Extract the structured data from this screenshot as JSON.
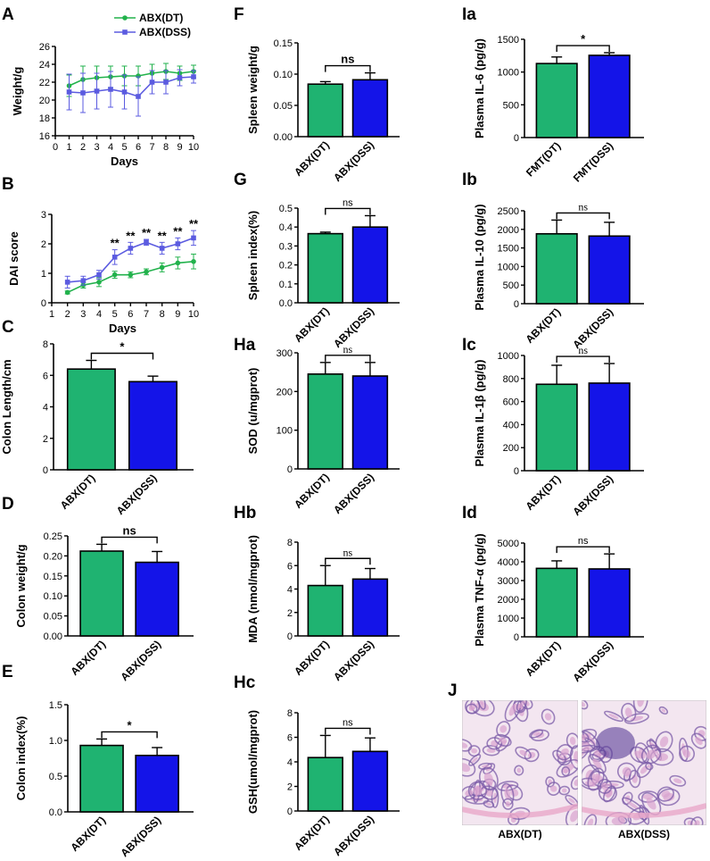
{
  "colors": {
    "green": "#1fb371",
    "blue": "#1414e8",
    "line_green": "#22b24c",
    "line_blue": "#5b5be0",
    "tissue_pink": "#d9a3cf",
    "tissue_purple": "#7c5ca8"
  },
  "chart_data": [
    {
      "id": "A",
      "label": "A",
      "type": "line",
      "ylabel": "Weight/g",
      "xlabel": "Days",
      "ylim": [
        16,
        26
      ],
      "yticks": [
        16,
        18,
        20,
        22,
        24,
        26
      ],
      "xlim": [
        0,
        10
      ],
      "xticks": [
        0,
        1,
        2,
        3,
        4,
        5,
        6,
        7,
        8,
        9,
        10
      ],
      "legend": [
        "ABX(DT)",
        "ABX(DSS)"
      ],
      "series": [
        {
          "name": "ABX(DT)",
          "x": [
            1,
            2,
            3,
            4,
            5,
            6,
            7,
            8,
            9,
            10
          ],
          "values": [
            21.6,
            22.3,
            22.5,
            22.6,
            22.7,
            22.7,
            23.0,
            23.2,
            23.0,
            23.2
          ],
          "err": [
            1.2,
            1.5,
            1.3,
            1.2,
            1.1,
            1.1,
            1.0,
            0.9,
            0.8,
            0.7
          ]
        },
        {
          "name": "ABX(DSS)",
          "x": [
            1,
            2,
            3,
            4,
            5,
            6,
            7,
            8,
            9,
            10
          ],
          "values": [
            20.9,
            20.8,
            21.0,
            21.2,
            20.9,
            20.4,
            22.0,
            22.0,
            22.5,
            22.6
          ],
          "err": [
            2.0,
            2.2,
            2.0,
            2.0,
            1.9,
            2.2,
            1.3,
            1.3,
            0.9,
            0.7
          ]
        }
      ]
    },
    {
      "id": "B",
      "label": "B",
      "type": "line",
      "ylabel": "DAI score",
      "xlabel": "Days",
      "ylim": [
        0,
        3
      ],
      "yticks": [
        0,
        1,
        2,
        3
      ],
      "xlim": [
        1,
        10
      ],
      "xticks": [
        1,
        2,
        3,
        4,
        5,
        6,
        7,
        8,
        9,
        10
      ],
      "series": [
        {
          "name": "ABX(DT)",
          "x": [
            2,
            3,
            4,
            5,
            6,
            7,
            8,
            9,
            10
          ],
          "values": [
            0.35,
            0.6,
            0.7,
            0.95,
            0.95,
            1.05,
            1.2,
            1.35,
            1.4
          ],
          "err": [
            0.05,
            0.1,
            0.15,
            0.12,
            0.1,
            0.1,
            0.15,
            0.2,
            0.25
          ]
        },
        {
          "name": "ABX(DSS)",
          "x": [
            2,
            3,
            4,
            5,
            6,
            7,
            8,
            9,
            10
          ],
          "values": [
            0.7,
            0.75,
            0.95,
            1.55,
            1.85,
            2.05,
            1.85,
            2.0,
            2.2
          ],
          "err": [
            0.2,
            0.15,
            0.15,
            0.25,
            0.2,
            0.1,
            0.2,
            0.2,
            0.25
          ]
        }
      ],
      "annotations": [
        {
          "x": 5,
          "text": "**"
        },
        {
          "x": 6,
          "text": "**"
        },
        {
          "x": 7,
          "text": "**"
        },
        {
          "x": 8,
          "text": "**"
        },
        {
          "x": 9,
          "text": "**"
        },
        {
          "x": 10,
          "text": "**"
        }
      ]
    },
    {
      "id": "C",
      "label": "C",
      "type": "bar",
      "ylabel": "Colon Length/cm",
      "categories": [
        "ABX(DT)",
        "ABX(DSS)"
      ],
      "values": [
        6.4,
        5.6
      ],
      "err": [
        0.55,
        0.35
      ],
      "ylim": [
        0,
        8
      ],
      "yticks": [
        0,
        2,
        4,
        6,
        8
      ],
      "tickfmt": "int",
      "sig": "*",
      "sig_style": "bold"
    },
    {
      "id": "D",
      "label": "D",
      "type": "bar",
      "ylabel": "Colon weight/g",
      "categories": [
        "ABX(DT)",
        "ABX(DSS)"
      ],
      "values": [
        0.212,
        0.184
      ],
      "err": [
        0.017,
        0.027
      ],
      "ylim": [
        0,
        0.25
      ],
      "yticks": [
        0.0,
        0.05,
        0.1,
        0.15,
        0.2,
        0.25
      ],
      "tickfmt": "2dp",
      "sig": "ns",
      "sig_style": "bigbold"
    },
    {
      "id": "E",
      "label": "E",
      "type": "bar",
      "ylabel": "Colon index(%)",
      "categories": [
        "ABX(DT)",
        "ABX(DSS)"
      ],
      "values": [
        0.93,
        0.79
      ],
      "err": [
        0.09,
        0.11
      ],
      "ylim": [
        0,
        1.5
      ],
      "yticks": [
        0.0,
        0.5,
        1.0,
        1.5
      ],
      "tickfmt": "1dp",
      "sig": "*",
      "sig_style": "bold"
    },
    {
      "id": "F",
      "label": "F",
      "type": "bar",
      "ylabel": "Spleen weight/g",
      "categories": [
        "ABX(DT)",
        "ABX(DSS)"
      ],
      "values": [
        0.084,
        0.091
      ],
      "err": [
        0.004,
        0.011
      ],
      "ylim": [
        0,
        0.15
      ],
      "yticks": [
        0.0,
        0.05,
        0.1,
        0.15
      ],
      "tickfmt": "2dp",
      "sig": "ns",
      "sig_style": "bold"
    },
    {
      "id": "G",
      "label": "G",
      "type": "bar",
      "ylabel": "Spleen index(%)",
      "categories": [
        "ABX(DT)",
        "ABX(DSS)"
      ],
      "values": [
        0.365,
        0.4
      ],
      "err": [
        0.008,
        0.06
      ],
      "ylim": [
        0,
        0.5
      ],
      "yticks": [
        0.0,
        0.1,
        0.2,
        0.3,
        0.4,
        0.5
      ],
      "tickfmt": "1dp",
      "sig": "ns",
      "sig_style": "plain"
    },
    {
      "id": "Ha",
      "label": "Ha",
      "type": "bar",
      "ylabel": "SOD (u/mgprot)",
      "categories": [
        "ABX(DT)",
        "ABX(DSS)"
      ],
      "values": [
        245,
        240
      ],
      "err": [
        30,
        35
      ],
      "ylim": [
        0,
        300
      ],
      "yticks": [
        0,
        100,
        200,
        300
      ],
      "tickfmt": "int",
      "sig": "ns",
      "sig_style": "serif"
    },
    {
      "id": "Hb",
      "label": "Hb",
      "type": "bar",
      "ylabel": "MDA (nmol/mgprot)",
      "categories": [
        "ABX(DT)",
        "ABX(DSS)"
      ],
      "values": [
        4.3,
        4.85
      ],
      "err": [
        1.7,
        0.9
      ],
      "ylim": [
        0,
        8
      ],
      "yticks": [
        0,
        2,
        4,
        6,
        8
      ],
      "tickfmt": "int",
      "sig": "ns",
      "sig_style": "serif"
    },
    {
      "id": "Hc",
      "label": "Hc",
      "type": "bar",
      "ylabel": "GSH(umol/mgprot)",
      "categories": [
        "ABX(DT)",
        "ABX(DSS)"
      ],
      "values": [
        4.35,
        4.85
      ],
      "err": [
        1.8,
        1.1
      ],
      "ylim": [
        0,
        8
      ],
      "yticks": [
        0,
        2,
        4,
        6,
        8
      ],
      "tickfmt": "int",
      "sig": "ns",
      "sig_style": "plain"
    },
    {
      "id": "Ia",
      "label": "Ia",
      "type": "bar",
      "ylabel": "Plasma IL-6 (pg/g)",
      "categories": [
        "FMT(DT)",
        "FMT(DSS)"
      ],
      "values": [
        1130,
        1255
      ],
      "err": [
        100,
        40
      ],
      "ylim": [
        0,
        1500
      ],
      "yticks": [
        0,
        500,
        1000,
        1500
      ],
      "tickfmt": "int",
      "sig": "*",
      "sig_style": "bold"
    },
    {
      "id": "Ib",
      "label": "Ib",
      "type": "bar",
      "ylabel": "Plasma  IL-10 (pg/g)",
      "categories": [
        "ABX(DT)",
        "ABX(DSS)"
      ],
      "values": [
        1880,
        1820
      ],
      "err": [
        370,
        370
      ],
      "ylim": [
        0,
        2500
      ],
      "yticks": [
        0,
        500,
        1000,
        1500,
        2000,
        2500
      ],
      "tickfmt": "int",
      "sig": "ns",
      "sig_style": "serif"
    },
    {
      "id": "Ic",
      "label": "Ic",
      "type": "bar",
      "ylabel": "Plasma  IL-1β (pg/g)",
      "categories": [
        "ABX(DT)",
        "ABX(DSS)"
      ],
      "values": [
        750,
        760
      ],
      "err": [
        165,
        170
      ],
      "ylim": [
        0,
        1000
      ],
      "yticks": [
        0,
        200,
        400,
        600,
        800,
        1000
      ],
      "tickfmt": "int",
      "sig": "ns",
      "sig_style": "serif"
    },
    {
      "id": "Id",
      "label": "Id",
      "type": "bar",
      "ylabel": "Plasma TNF-α (pg/g)",
      "categories": [
        "ABX(DT)",
        "ABX(DSS)"
      ],
      "values": [
        3650,
        3620
      ],
      "err": [
        400,
        800
      ],
      "ylim": [
        0,
        5000
      ],
      "yticks": [
        0,
        1000,
        2000,
        3000,
        4000,
        5000
      ],
      "tickfmt": "int",
      "sig": "ns",
      "sig_style": "plain"
    }
  ],
  "histology": {
    "label": "J",
    "captions": [
      "ABX(DT)",
      "ABX(DSS)"
    ]
  }
}
